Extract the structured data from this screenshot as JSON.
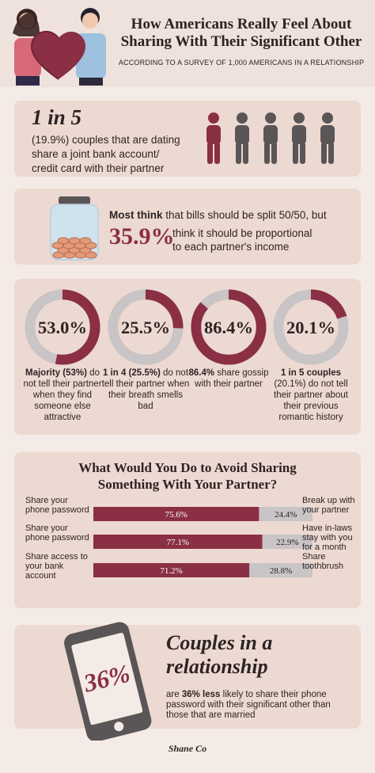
{
  "header": {
    "title_line1": "How Americans Really Feel About",
    "title_line2": "Sharing With Their Significant Other",
    "subtitle": "ACCORDING TO A SURVEY OF 1,000 AMERICANS IN A RELATIONSHIP"
  },
  "stat1": {
    "big": "1 in 5",
    "line1": "(19.9%) couples that are dating",
    "line2": "share a joint bank account/",
    "line3": "credit card with their partner",
    "highlighted_count": 1,
    "total_count": 5
  },
  "stat2": {
    "bold": "Most think",
    "rest1": " that bills should be split 50/50, but",
    "pct": "35.9%",
    "rest2": "think it should be proportional",
    "rest3": "to each partner's income"
  },
  "chart_data": [
    {
      "type": "pie",
      "variant": "donut",
      "items": [
        {
          "value": 53.0,
          "label": "53.0%",
          "text_bold": "Majority (53%)",
          "text": " do not tell their partner when they find someone else attractive"
        },
        {
          "value": 25.5,
          "label": "25.5%",
          "text_bold": "1 in 4 (25.5%)",
          "text": " do not tell their partner when their breath smells bad"
        },
        {
          "value": 86.4,
          "label": "86.4%",
          "text_bold": "86.4%",
          "text": " share gossip with their partner"
        },
        {
          "value": 20.1,
          "label": "20.1%",
          "text_bold": "1 in 5 couples",
          "text": " (20.1%) do not tell their partner about their previous romantic history"
        }
      ]
    },
    {
      "type": "bar",
      "orientation": "horizontal",
      "stacked": true,
      "title_line1": "What Would You Do to Avoid Sharing",
      "title_line2": "Something With Your Partner?",
      "rows": [
        {
          "left_label": "Share your phone password",
          "left": 75.6,
          "left_text": "75.6%",
          "right_label": "Break up with your partner",
          "right": 24.4,
          "right_text": "24.4%"
        },
        {
          "left_label": "Share your phone password",
          "left": 77.1,
          "left_text": "77.1%",
          "right_label": "Have in-laws stay with you for a month",
          "right": 22.9,
          "right_text": "22.9%"
        },
        {
          "left_label": "Share access to your bank account",
          "left": 71.2,
          "left_text": "71.2%",
          "right_label": "Share toothbrush",
          "right": 28.8,
          "right_text": "28.8%"
        }
      ]
    }
  ],
  "stat5": {
    "pct": "36%",
    "title": "Couples in a relationship",
    "text_pre": "are ",
    "text_bold": "36% less",
    "text_post": " likely to share their phone password with their significant other than those that are married"
  },
  "brand": "Shane Co",
  "colors": {
    "accent": "#8a2f44",
    "gray": "#c9c4c5",
    "card": "#ecd9d1",
    "dark": "#2d2324",
    "person": "#5a5556"
  }
}
